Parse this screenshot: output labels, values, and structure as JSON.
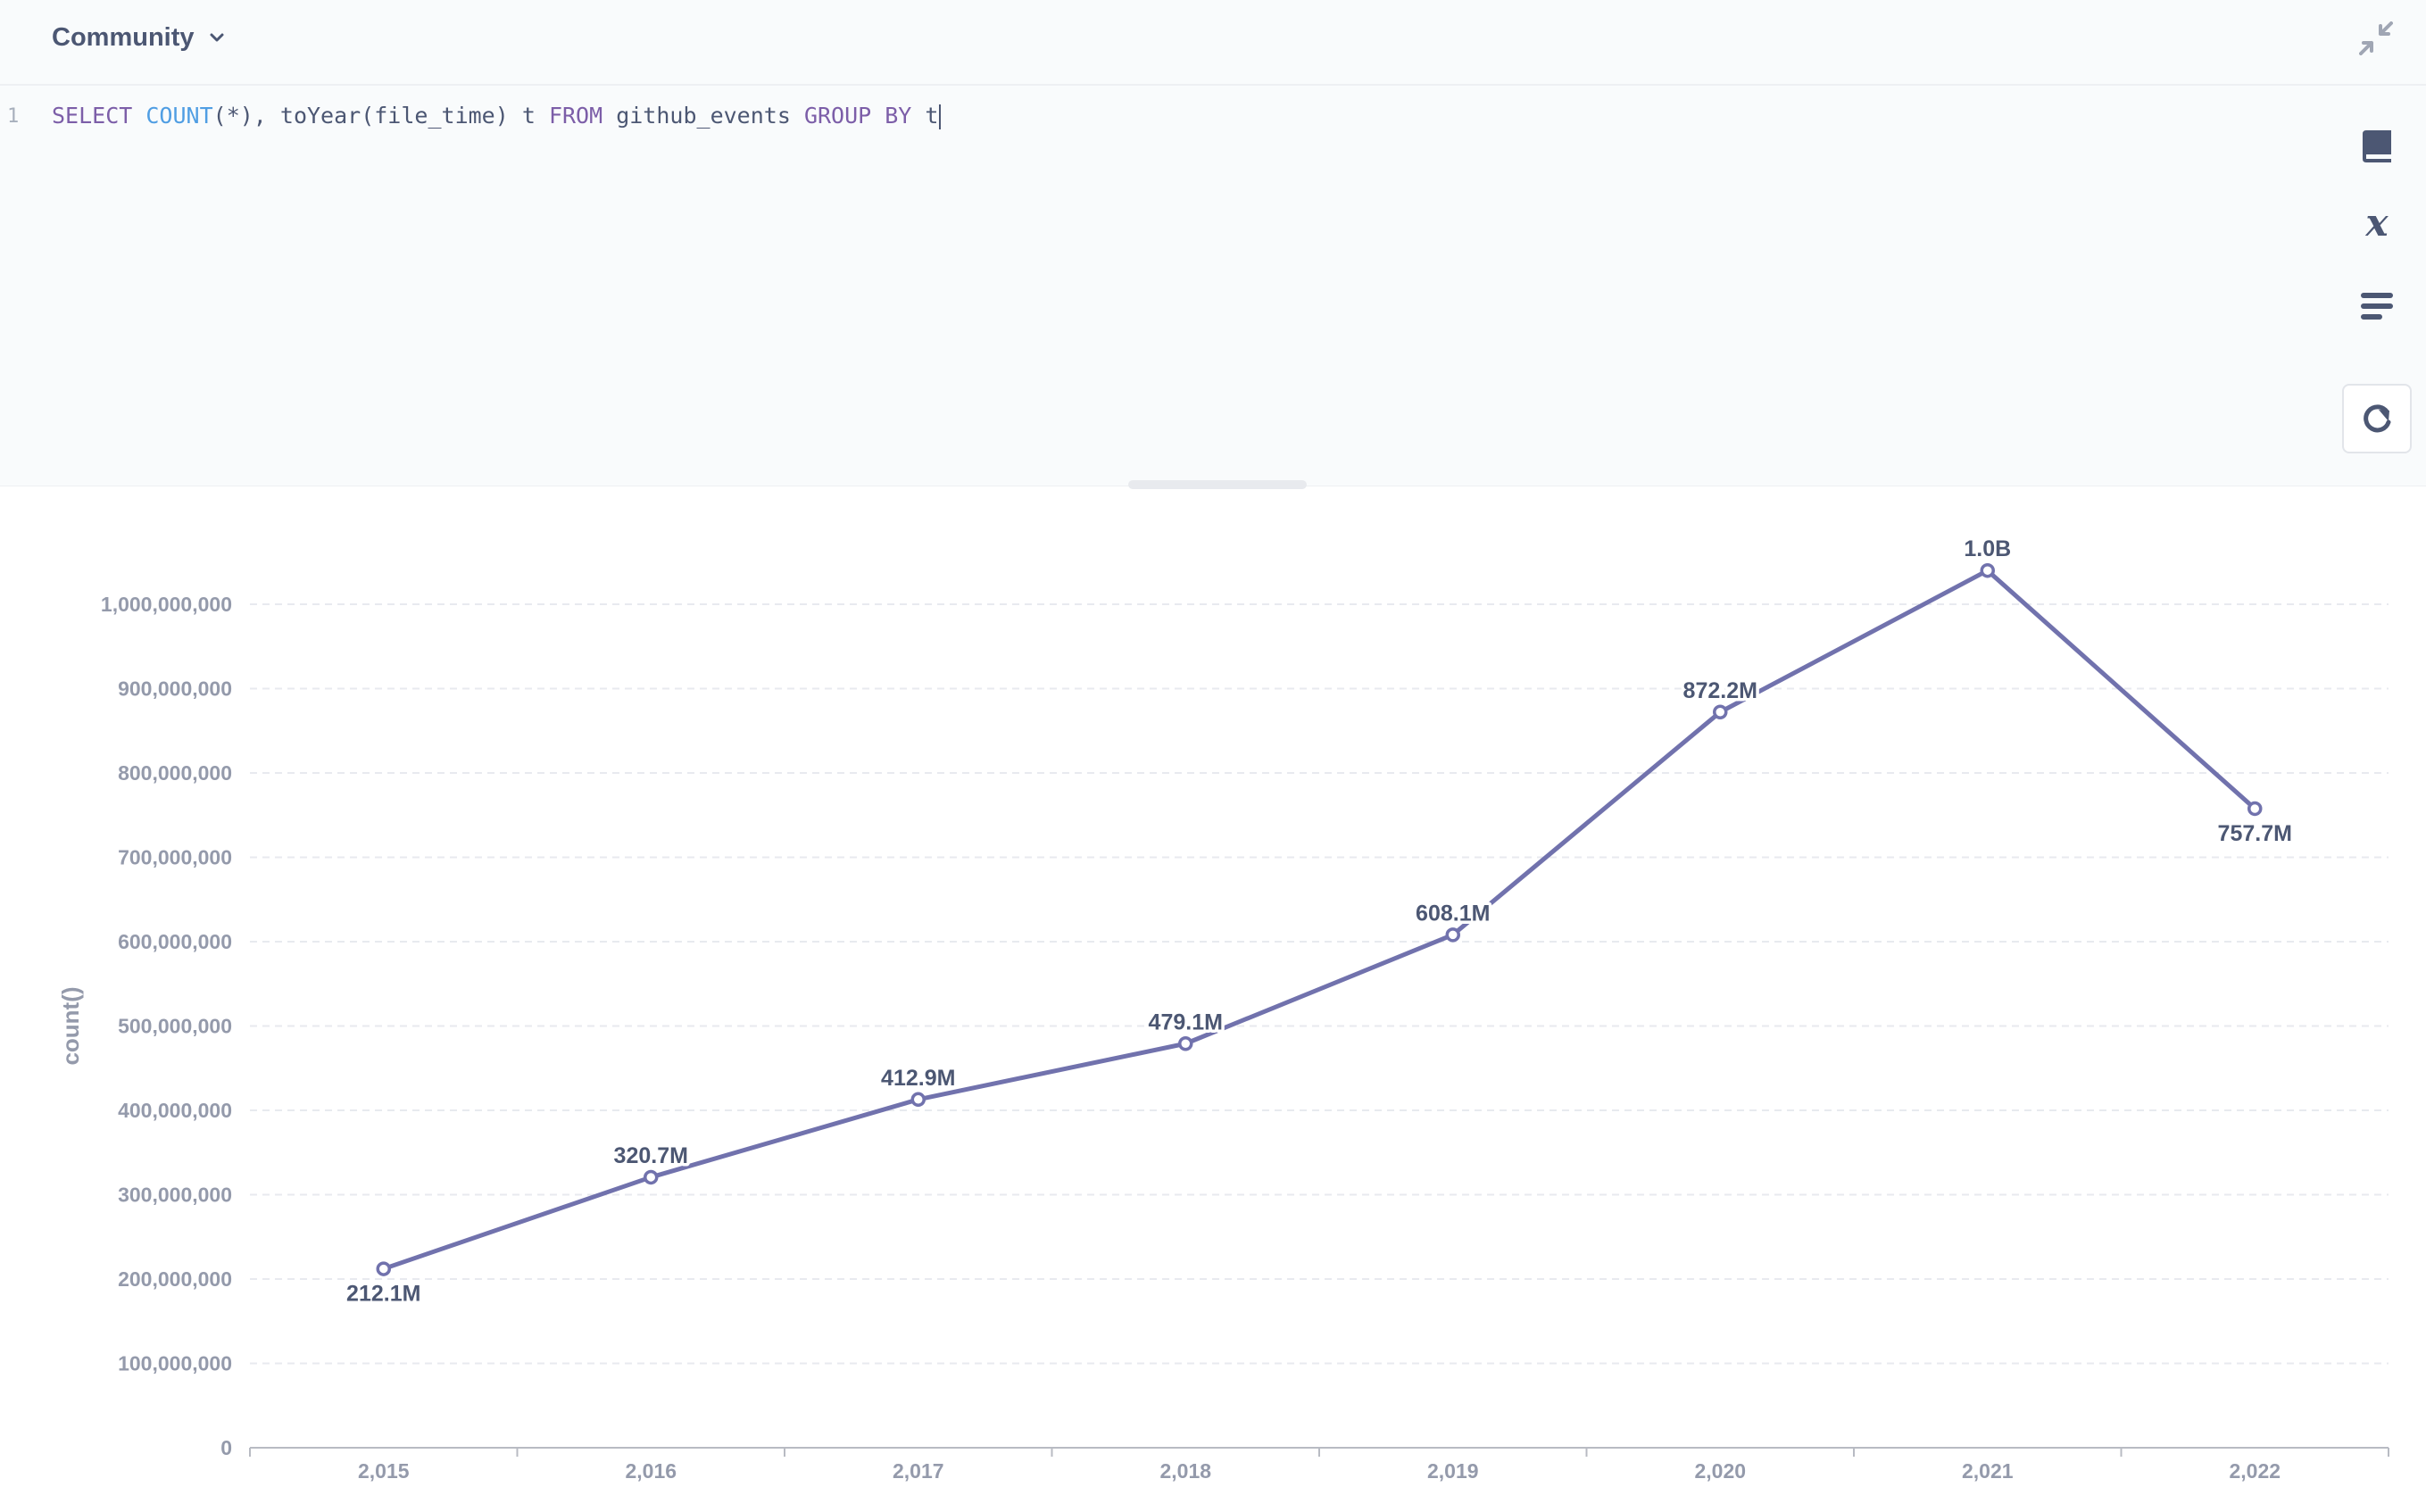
{
  "editor": {
    "database": "Community",
    "line_number": "1",
    "query_tokens": [
      {
        "text": "SELECT",
        "kind": "kw"
      },
      {
        "text": " ",
        "kind": "plain"
      },
      {
        "text": "COUNT",
        "kind": "fn"
      },
      {
        "text": "(*), toYear(file_time) t ",
        "kind": "plain"
      },
      {
        "text": "FROM",
        "kind": "kw"
      },
      {
        "text": " github_events ",
        "kind": "plain"
      },
      {
        "text": "GROUP BY",
        "kind": "kw"
      },
      {
        "text": " t",
        "kind": "plain"
      }
    ],
    "icons": [
      "collapse-icon",
      "reference-book-icon",
      "variables-x-icon",
      "snippets-icon",
      "refresh-run-icon"
    ]
  },
  "chart_data": {
    "type": "line",
    "x": [
      "2,015",
      "2,016",
      "2,017",
      "2,018",
      "2,019",
      "2,020",
      "2,021",
      "2,022"
    ],
    "series": [
      {
        "values": [
          212100000,
          320700000,
          412900000,
          479100000,
          608100000,
          872200000,
          1040000000,
          757700000
        ],
        "labels": [
          "212.1M",
          "320.7M",
          "412.9M",
          "479.1M",
          "608.1M",
          "872.2M",
          "1.0B",
          "757.7M"
        ],
        "label_position": [
          "below",
          "above",
          "above",
          "above",
          "above",
          "above",
          "above",
          "below"
        ],
        "color": "#7172ad"
      }
    ],
    "y_ticks": [
      "0",
      "100,000,000",
      "200,000,000",
      "300,000,000",
      "400,000,000",
      "500,000,000",
      "600,000,000",
      "700,000,000",
      "800,000,000",
      "900,000,000",
      "1,000,000,000"
    ],
    "ylim": [
      0,
      1000000000
    ],
    "ylabel": "count()",
    "xlabel": "",
    "grid": true,
    "grid_color": "#e8eaef",
    "axis_color": "#b8bbc3"
  }
}
